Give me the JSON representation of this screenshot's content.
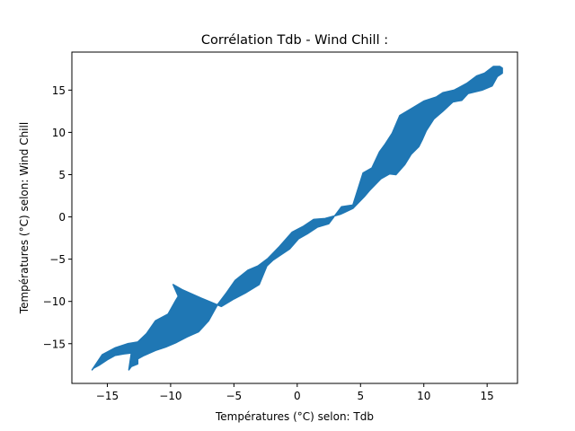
{
  "chart_data": {
    "type": "area",
    "title": "Corrélation Tdb - Wind Chill :",
    "xlabel": "Températures (°C) selon: Tdb",
    "ylabel": "Températures (°C) selon: Wind Chill",
    "xlim": [
      -17.8,
      17.4
    ],
    "ylim": [
      -19.7,
      19.5
    ],
    "xticks": [
      -15,
      -10,
      -5,
      0,
      5,
      10,
      15
    ],
    "yticks": [
      -15,
      -10,
      -5,
      0,
      5,
      10,
      15
    ],
    "xtick_labels": [
      "−15",
      "−10",
      "−5",
      "0",
      "5",
      "10",
      "15"
    ],
    "ytick_labels": [
      "−15",
      "−10",
      "−5",
      "0",
      "5",
      "10",
      "15"
    ],
    "grid": false,
    "color": "#1f77b4",
    "series": [
      {
        "x": [
          -16.2,
          -15.4,
          -14.4,
          -13.4,
          -12.6,
          -11.9,
          -11.2,
          -10.2,
          -9.6,
          -9.4,
          -9.8,
          -9.1,
          -7.6,
          -6.0,
          -5.0,
          -4.1,
          -3.0,
          -2.4,
          -1.9,
          -1.3,
          -0.6,
          0.1,
          0.8,
          1.6,
          2.5,
          3.5,
          4.4,
          5.2,
          5.9,
          6.5,
          6.9,
          7.5,
          8.1,
          9.0,
          10.0,
          11.0,
          11.5,
          12.4,
          13.4,
          14.2,
          14.8,
          15.5,
          16.0,
          16.2,
          16.2,
          15.8,
          15.4,
          14.6,
          13.5,
          13.0,
          12.3,
          11.5,
          10.8,
          10.2,
          9.9,
          9.6,
          9.0,
          8.5,
          7.8,
          7.3,
          6.6,
          5.7,
          5.3,
          4.4,
          3.4,
          2.2,
          1.3,
          0.5,
          -0.4,
          -1.4,
          -2.3,
          -3.1,
          -3.9,
          -4.9,
          -5.6,
          -6.3,
          -7.0,
          -7.8,
          -8.7,
          -9.6,
          -10.4,
          -11.2,
          -12.1,
          -12.6,
          -12.6,
          -13.1,
          -13.3,
          -13.1,
          -13.7,
          -14.4,
          -15.0,
          -15.6,
          -16.1,
          -16.2
        ],
        "y": [
          -18.1,
          -16.3,
          -15.5,
          -15.0,
          -14.8,
          -13.8,
          -12.3,
          -11.5,
          -9.9,
          -9.4,
          -8.0,
          -8.6,
          -9.6,
          -10.6,
          -9.7,
          -9.0,
          -8.0,
          -5.8,
          -5.1,
          -4.5,
          -3.8,
          -2.6,
          -2.0,
          -1.2,
          -0.8,
          1.2,
          1.4,
          5.2,
          5.8,
          7.7,
          8.5,
          9.9,
          12.0,
          12.8,
          13.7,
          14.2,
          14.7,
          15.0,
          15.8,
          16.7,
          17.0,
          17.8,
          17.8,
          17.6,
          17.0,
          16.6,
          15.5,
          15.0,
          14.6,
          13.8,
          13.6,
          12.5,
          11.6,
          10.2,
          9.2,
          8.3,
          7.4,
          6.2,
          5.0,
          5.1,
          4.5,
          3.1,
          2.4,
          1.0,
          0.3,
          -0.2,
          -0.3,
          -1.1,
          -1.8,
          -3.5,
          -4.9,
          -5.8,
          -6.3,
          -7.5,
          -9.0,
          -10.4,
          -12.3,
          -13.6,
          -14.2,
          -14.9,
          -15.4,
          -15.8,
          -16.4,
          -16.8,
          -17.4,
          -17.7,
          -18.1,
          -16.1,
          -16.2,
          -16.4,
          -16.9,
          -17.5,
          -17.9,
          -18.1
        ]
      }
    ]
  }
}
